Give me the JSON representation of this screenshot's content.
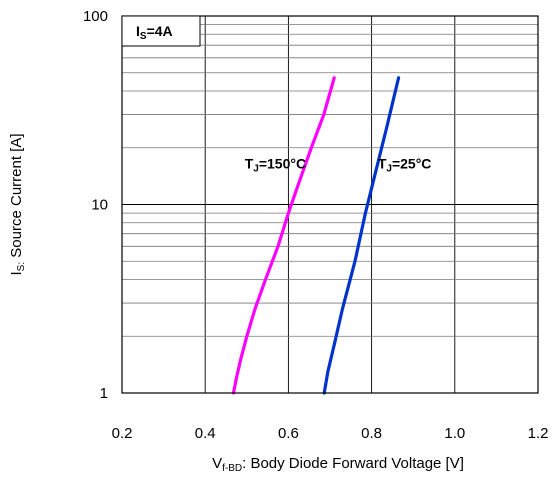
{
  "chart_data": {
    "type": "line",
    "x_axis": {
      "label_main": "V",
      "label_sub": "f-BD",
      "label_rest": ": Body Diode Forward Voltage [V]",
      "range": [
        0.2,
        1.2
      ],
      "ticks": [
        0.2,
        0.4,
        0.6,
        0.8,
        1.0,
        1.2
      ],
      "tick_labels": [
        "0.2",
        "0.4",
        "0.6",
        "0.8",
        "1.0",
        "1.2"
      ]
    },
    "y_axis": {
      "label_main": "I",
      "label_sub": "S:",
      "label_rest": " Source Current [A]",
      "scale": "log",
      "range": [
        1,
        100
      ],
      "ticks": [
        1,
        10,
        100
      ],
      "tick_labels": [
        "1",
        "10",
        "100"
      ]
    },
    "grid": true,
    "series": [
      {
        "color": "#ff00ff",
        "points": [
          [
            0.468,
            1.0
          ],
          [
            0.475,
            1.2
          ],
          [
            0.485,
            1.5
          ],
          [
            0.5,
            2.0
          ],
          [
            0.52,
            2.8
          ],
          [
            0.545,
            4.0
          ],
          [
            0.575,
            6.0
          ],
          [
            0.6,
            9.0
          ],
          [
            0.625,
            13.0
          ],
          [
            0.655,
            20.0
          ],
          [
            0.685,
            30.0
          ],
          [
            0.71,
            47.0
          ]
        ]
      },
      {
        "color": "#0033cc",
        "points": [
          [
            0.686,
            1.0
          ],
          [
            0.695,
            1.3
          ],
          [
            0.71,
            1.8
          ],
          [
            0.73,
            2.8
          ],
          [
            0.76,
            5.0
          ],
          [
            0.785,
            9.0
          ],
          [
            0.81,
            15.0
          ],
          [
            0.835,
            25.0
          ],
          [
            0.865,
            47.0
          ]
        ]
      }
    ],
    "annotations": [
      {
        "main": "T",
        "sub": "J",
        "rest": "=150°C",
        "x": 0.495,
        "y": 16.5
      },
      {
        "main": "T",
        "sub": "J",
        "rest": "=25°C",
        "x": 0.815,
        "y": 16.5
      }
    ],
    "legend_box": {
      "main": "I",
      "sub": "S",
      "rest": "=4A"
    }
  }
}
